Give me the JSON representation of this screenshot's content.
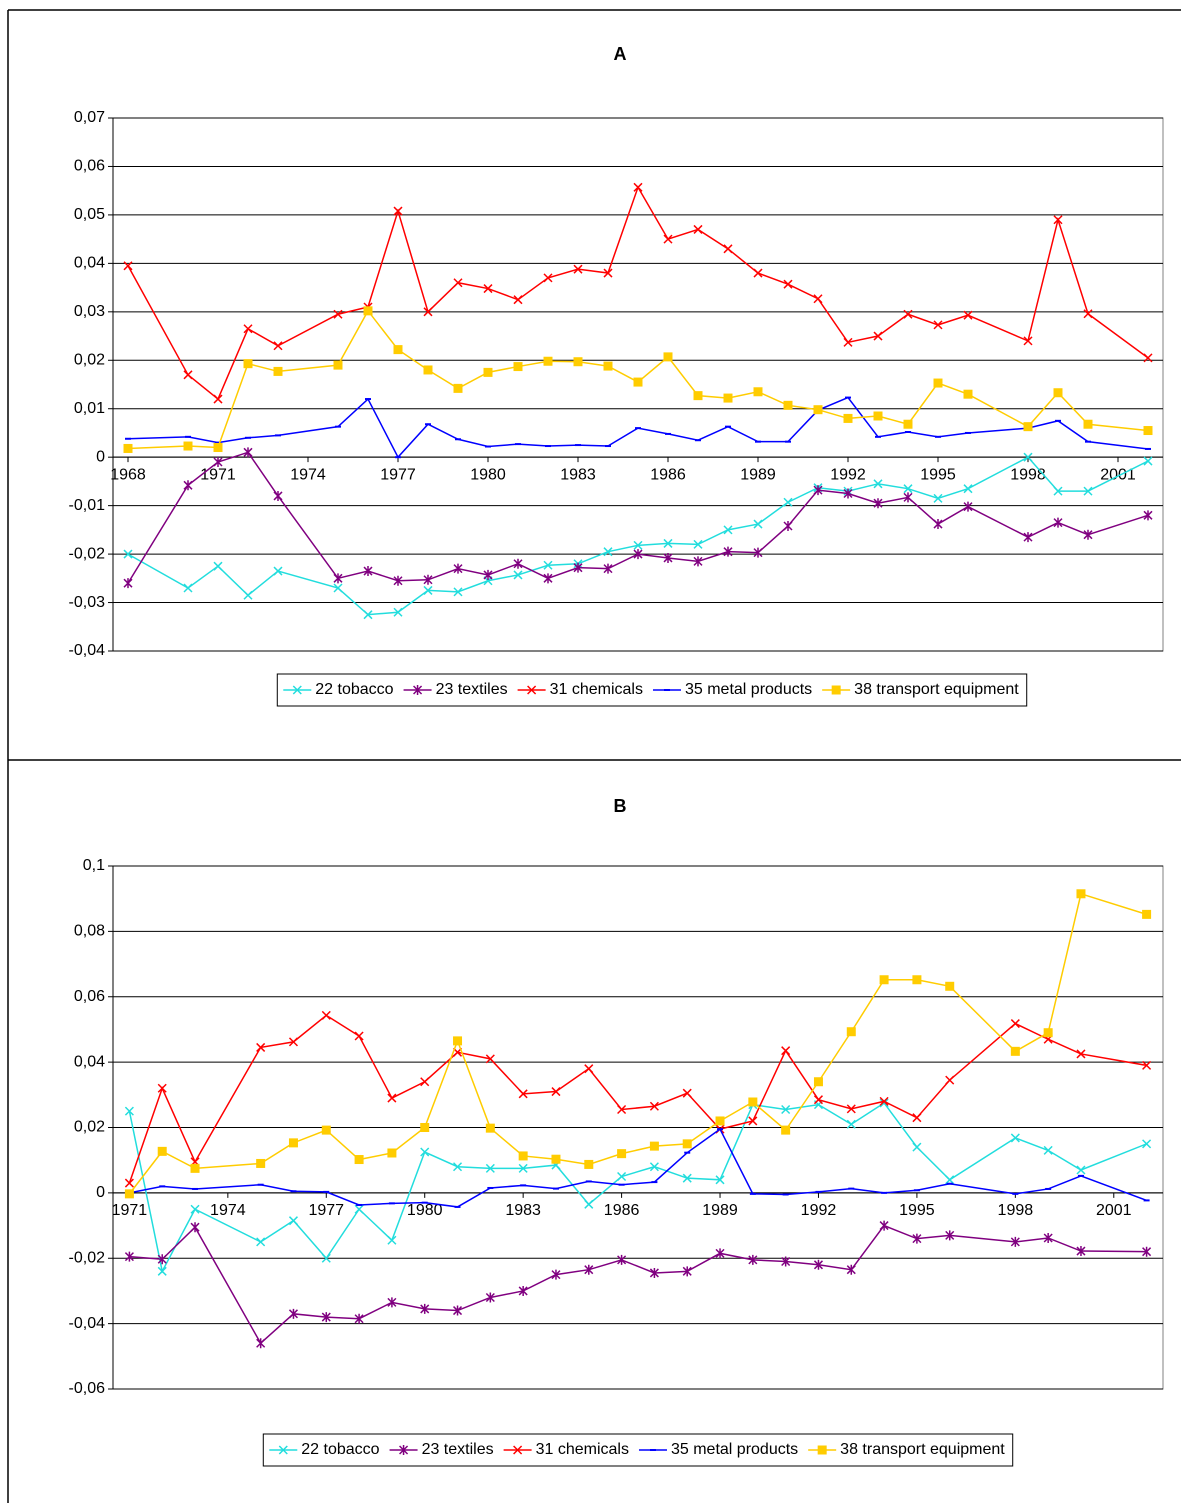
{
  "chart_data": [
    {
      "type": "line",
      "title": "A",
      "x": [
        1968,
        1970,
        1971,
        1972,
        1973,
        1975,
        1976,
        1977,
        1978,
        1979,
        1980,
        1981,
        1982,
        1983,
        1984,
        1985,
        1986,
        1987,
        1988,
        1989,
        1990,
        1991,
        1992,
        1993,
        1994,
        1995,
        1996,
        1998,
        1999,
        2000,
        2002
      ],
      "series": [
        {
          "name": "22 tobacco",
          "color": "#22dddd",
          "marker": "x",
          "values": [
            -0.02,
            -0.027,
            -0.0225,
            -0.0285,
            -0.0235,
            -0.027,
            -0.0325,
            -0.032,
            -0.0275,
            -0.0278,
            -0.0255,
            -0.0243,
            -0.0223,
            -0.022,
            -0.0195,
            -0.0182,
            -0.0178,
            -0.018,
            -0.015,
            -0.0138,
            -0.0093,
            -0.0063,
            -0.007,
            -0.0055,
            -0.0065,
            -0.0085,
            -0.0065,
            0,
            -0.007,
            -0.007,
            -0.0008
          ]
        },
        {
          "name": "23 textiles",
          "color": "#800080",
          "marker": "asterisk",
          "values": [
            -0.026,
            -0.0058,
            -0.001,
            0.001,
            -0.008,
            -0.025,
            -0.0235,
            -0.0255,
            -0.0253,
            -0.023,
            -0.0243,
            -0.022,
            -0.025,
            -0.0228,
            -0.023,
            -0.02,
            -0.0208,
            -0.0215,
            -0.0195,
            -0.0197,
            -0.0142,
            -0.0068,
            -0.0075,
            -0.0095,
            -0.0083,
            -0.0138,
            -0.0102,
            -0.0165,
            -0.0135,
            -0.016,
            -0.012
          ]
        },
        {
          "name": "31 chemicals",
          "color": "#ff0000",
          "marker": "x",
          "values": [
            0.0395,
            0.017,
            0.012,
            0.0265,
            0.023,
            0.0295,
            0.031,
            0.0508,
            0.03,
            0.036,
            0.0348,
            0.0325,
            0.037,
            0.0388,
            0.038,
            0.0557,
            0.045,
            0.047,
            0.043,
            0.038,
            0.0357,
            0.0327,
            0.0237,
            0.025,
            0.0295,
            0.0273,
            0.0293,
            0.024,
            0.049,
            0.0296,
            0.0205
          ]
        },
        {
          "name": "35 metal products",
          "color": "#0000ff",
          "marker": "dash",
          "values": [
            0.0038,
            0.0042,
            0.003,
            0.004,
            0.0045,
            0.0063,
            0.012,
            0,
            0.0068,
            0.0037,
            0.0022,
            0.0027,
            0.0023,
            0.0025,
            0.0023,
            0.006,
            0.0048,
            0.0035,
            0.0063,
            0.0032,
            0.0032,
            0.0097,
            0.0123,
            0.0042,
            0.0052,
            0.0042,
            0.005,
            0.006,
            0.0075,
            0.0032,
            0.0017
          ]
        },
        {
          "name": "38 transport equipment",
          "color": "#ffcc00",
          "marker": "square",
          "values": [
            0.0018,
            0.0023,
            0.002,
            0.0193,
            0.0177,
            0.019,
            0.0302,
            0.0222,
            0.018,
            0.0142,
            0.0175,
            0.0187,
            0.0198,
            0.0197,
            0.0188,
            0.0155,
            0.0207,
            0.0127,
            0.0122,
            0.0135,
            0.0107,
            0.0098,
            0.008,
            0.0085,
            0.0068,
            0.0153,
            0.013,
            0.0063,
            0.0133,
            0.0068,
            0.0055
          ]
        }
      ],
      "xlim": [
        1967.5,
        2002.5
      ],
      "xticks": [
        1968,
        1971,
        1974,
        1977,
        1980,
        1983,
        1986,
        1989,
        1992,
        1995,
        1998,
        2001
      ],
      "ylim": [
        -0.04,
        0.07
      ],
      "yticks": [
        {
          "value": 0.07,
          "label": "0,07"
        },
        {
          "value": 0.06,
          "label": "0,06"
        },
        {
          "value": 0.05,
          "label": "0,05"
        },
        {
          "value": 0.04,
          "label": "0,04"
        },
        {
          "value": 0.03,
          "label": "0,03"
        },
        {
          "value": 0.02,
          "label": "0,02"
        },
        {
          "value": 0.01,
          "label": "0,01"
        },
        0,
        {
          "value": -0.01,
          "label": "-0,01"
        },
        {
          "value": -0.02,
          "label": "-0,02"
        },
        {
          "value": -0.03,
          "label": "-0,03"
        },
        {
          "value": -0.04,
          "label": "-0,04"
        }
      ],
      "grid": true,
      "legend": "bottom"
    },
    {
      "type": "line",
      "title": "B",
      "x": [
        1971,
        1972,
        1973,
        1975,
        1976,
        1977,
        1978,
        1979,
        1980,
        1981,
        1982,
        1983,
        1984,
        1985,
        1986,
        1987,
        1988,
        1989,
        1990,
        1991,
        1992,
        1993,
        1994,
        1995,
        1996,
        1998,
        1999,
        2000,
        2002
      ],
      "series": [
        {
          "name": "22 tobacco",
          "color": "#22dddd",
          "marker": "x",
          "values": [
            0.025,
            -0.024,
            -0.005,
            -0.015,
            -0.0085,
            -0.02,
            -0.005,
            -0.0145,
            0.0125,
            0.008,
            0.0075,
            0.0075,
            0.0085,
            -0.0035,
            0.005,
            0.008,
            0.0045,
            0.004,
            0.027,
            0.0255,
            0.027,
            0.021,
            0.0275,
            0.014,
            0.004,
            0.0168,
            0.013,
            0.007,
            0.015
          ]
        },
        {
          "name": "23 textiles",
          "color": "#800080",
          "marker": "asterisk",
          "values": [
            -0.0195,
            -0.0203,
            -0.0105,
            -0.046,
            -0.037,
            -0.038,
            -0.0385,
            -0.0335,
            -0.0355,
            -0.036,
            -0.032,
            -0.03,
            -0.025,
            -0.0235,
            -0.0205,
            -0.0245,
            -0.024,
            -0.0185,
            -0.0205,
            -0.021,
            -0.022,
            -0.0235,
            -0.01,
            -0.014,
            -0.013,
            -0.015,
            -0.0138,
            -0.0178,
            -0.018
          ]
        },
        {
          "name": "31 chemicals",
          "color": "#ff0000",
          "marker": "x",
          "values": [
            0.003,
            0.032,
            0.0095,
            0.0445,
            0.0462,
            0.0543,
            0.048,
            0.029,
            0.034,
            0.043,
            0.041,
            0.0303,
            0.031,
            0.038,
            0.0255,
            0.0265,
            0.0305,
            0.0195,
            0.022,
            0.0435,
            0.0285,
            0.0257,
            0.028,
            0.023,
            0.0345,
            0.0518,
            0.047,
            0.0425,
            0.039
          ]
        },
        {
          "name": "35 metal products",
          "color": "#0000ff",
          "marker": "dash",
          "values": [
            0,
            0.002,
            0.0012,
            0.0025,
            0.0005,
            0.0003,
            -0.0037,
            -0.0032,
            -0.003,
            -0.0043,
            0.0015,
            0.0023,
            0.0013,
            0.0035,
            0.0025,
            0.0033,
            0.0123,
            0.0195,
            -0.0003,
            -0.0005,
            0.0003,
            0.0013,
            0,
            0.0008,
            0.0028,
            -0.0003,
            0.0012,
            0.0052,
            -0.0023
          ]
        },
        {
          "name": "38 transport equipment",
          "color": "#ffcc00",
          "marker": "square",
          "values": [
            -0.0003,
            0.0127,
            0.0075,
            0.009,
            0.0153,
            0.0192,
            0.0102,
            0.0122,
            0.02,
            0.0465,
            0.0198,
            0.0113,
            0.0103,
            0.0087,
            0.012,
            0.0143,
            0.015,
            0.022,
            0.0278,
            0.0192,
            0.034,
            0.0493,
            0.0652,
            0.0652,
            0.0632,
            0.0433,
            0.049,
            0.0915,
            0.0852
          ]
        }
      ],
      "xlim": [
        1970.5,
        2002.5
      ],
      "xticks": [
        1971,
        1974,
        1977,
        1980,
        1983,
        1986,
        1989,
        1992,
        1995,
        1998,
        2001
      ],
      "ylim": [
        -0.06,
        0.1
      ],
      "yticks": [
        {
          "value": 0.1,
          "label": "0,1"
        },
        {
          "value": 0.08,
          "label": "0,08"
        },
        {
          "value": 0.06,
          "label": "0,06"
        },
        {
          "value": 0.04,
          "label": "0,04"
        },
        {
          "value": 0.02,
          "label": "0,02"
        },
        0,
        {
          "value": -0.02,
          "label": "-0,02"
        },
        {
          "value": -0.04,
          "label": "-0,04"
        },
        {
          "value": -0.06,
          "label": "-0,06"
        }
      ],
      "grid": true,
      "legend": "bottom"
    }
  ]
}
